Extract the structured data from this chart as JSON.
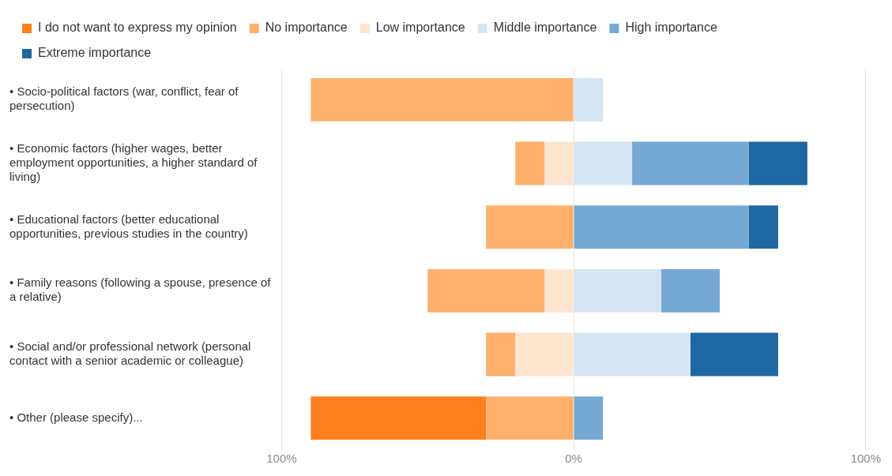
{
  "chart_data": {
    "type": "bar",
    "orientation": "horizontal",
    "stacked": true,
    "categories": [
      "• Socio-political factors (war, conflict, fear of persecution)",
      "• Economic factors (higher wages, better employment opportunities, a higher standard of living)",
      "• Educational factors (better educational opportunities, previous studies in the country)",
      "• Family reasons (following a spouse, presence of a relative)",
      "• Social and/or professional network (personal contact with a senior academic or colleague)",
      "• Other (please specify)..."
    ],
    "series": [
      {
        "name": "Low importance",
        "color": "#fde4cf",
        "values": [
          0,
          -10,
          0,
          -10,
          -20,
          0
        ]
      },
      {
        "name": "No importance",
        "color": "#feb06c",
        "values": [
          -90,
          -10,
          -30,
          -40,
          -10,
          -30
        ]
      },
      {
        "name": "I do not want to express my opinion",
        "color": "#fe7f1e",
        "values": [
          0,
          0,
          0,
          0,
          0,
          -60
        ]
      },
      {
        "name": "Middle importance",
        "color": "#d5e5f3",
        "values": [
          10,
          20,
          0,
          30,
          40,
          0
        ]
      },
      {
        "name": "High importance",
        "color": "#75a9d4",
        "values": [
          0,
          40,
          60,
          20,
          0,
          10
        ]
      },
      {
        "name": "Extreme importance",
        "color": "#1f67a3",
        "values": [
          0,
          20,
          10,
          0,
          30,
          0
        ]
      }
    ],
    "xlim": [
      -100,
      100
    ],
    "xticks": [
      {
        "value": -100,
        "label": "100%"
      },
      {
        "value": 0,
        "label": "0%"
      },
      {
        "value": 100,
        "label": "100%"
      }
    ],
    "grid": "x",
    "legend": "top left"
  }
}
